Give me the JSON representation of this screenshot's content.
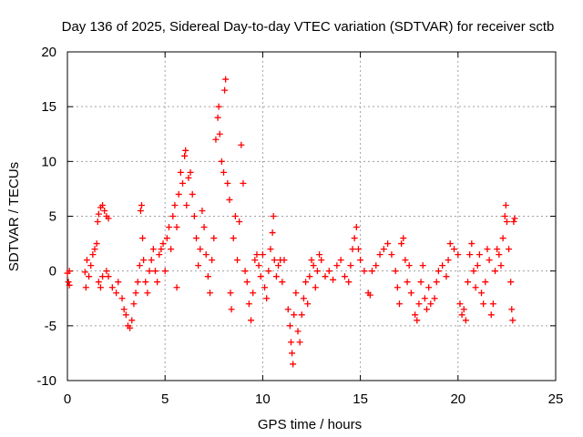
{
  "chart_data": {
    "type": "scatter",
    "title": "Day 136 of 2025, Sidereal Day-to-day VTEC variation (SDTVAR) for receiver sctb",
    "xlabel": "GPS time / hours",
    "ylabel": "SDTVAR / TECUs",
    "xlim": [
      0,
      25
    ],
    "ylim": [
      -10,
      20
    ],
    "xticks": [
      0,
      5,
      10,
      15,
      20,
      25
    ],
    "yticks": [
      -10,
      -5,
      0,
      5,
      10,
      15,
      20
    ],
    "xtick_labels": [
      "0",
      "5",
      "10",
      "15",
      "20",
      "25"
    ],
    "ytick_labels": [
      "-10",
      "-5",
      "0",
      "5",
      "10",
      "15",
      "20"
    ],
    "grid": true,
    "marker": "plus",
    "series": [
      {
        "name": "SDTVAR",
        "color": "#ff0000",
        "points": [
          [
            0.0,
            -0.2
          ],
          [
            0.05,
            -1.0
          ],
          [
            0.1,
            -1.3
          ],
          [
            0.1,
            0.0
          ],
          [
            0.9,
            -0.1
          ],
          [
            0.95,
            -1.5
          ],
          [
            1.0,
            1.0
          ],
          [
            1.1,
            -0.5
          ],
          [
            1.2,
            0.5
          ],
          [
            1.3,
            1.5
          ],
          [
            1.4,
            2.0
          ],
          [
            1.5,
            2.5
          ],
          [
            1.55,
            4.5
          ],
          [
            1.6,
            5.2
          ],
          [
            1.7,
            5.8
          ],
          [
            1.8,
            6.0
          ],
          [
            1.9,
            5.5
          ],
          [
            2.0,
            5.0
          ],
          [
            2.1,
            4.8
          ],
          [
            1.6,
            -1.0
          ],
          [
            1.7,
            -1.5
          ],
          [
            1.8,
            -0.5
          ],
          [
            2.0,
            0.0
          ],
          [
            2.1,
            -0.5
          ],
          [
            2.3,
            -1.5
          ],
          [
            2.5,
            -2.0
          ],
          [
            2.6,
            -1.0
          ],
          [
            2.8,
            -2.5
          ],
          [
            2.9,
            -3.5
          ],
          [
            3.0,
            -4.0
          ],
          [
            3.1,
            -5.0
          ],
          [
            3.2,
            -5.2
          ],
          [
            3.3,
            -4.5
          ],
          [
            3.4,
            -3.0
          ],
          [
            3.5,
            -2.0
          ],
          [
            3.6,
            -1.0
          ],
          [
            3.7,
            0.5
          ],
          [
            3.75,
            5.5
          ],
          [
            3.8,
            6.0
          ],
          [
            3.85,
            3.0
          ],
          [
            3.9,
            1.0
          ],
          [
            4.0,
            -1.0
          ],
          [
            4.1,
            -2.0
          ],
          [
            4.2,
            0.0
          ],
          [
            4.3,
            1.0
          ],
          [
            4.4,
            2.0
          ],
          [
            4.5,
            0.0
          ],
          [
            4.6,
            -1.0
          ],
          [
            4.7,
            1.5
          ],
          [
            4.8,
            2.0
          ],
          [
            4.9,
            2.5
          ],
          [
            5.0,
            0.0
          ],
          [
            5.1,
            3.0
          ],
          [
            5.2,
            4.0
          ],
          [
            5.3,
            2.0
          ],
          [
            5.4,
            5.0
          ],
          [
            5.5,
            6.0
          ],
          [
            5.6,
            4.0
          ],
          [
            5.6,
            -1.5
          ],
          [
            5.7,
            7.0
          ],
          [
            5.8,
            9.0
          ],
          [
            5.9,
            8.0
          ],
          [
            6.0,
            10.5
          ],
          [
            6.05,
            11.0
          ],
          [
            6.1,
            6.0
          ],
          [
            6.2,
            8.5
          ],
          [
            6.3,
            9.0
          ],
          [
            6.4,
            7.0
          ],
          [
            6.5,
            5.0
          ],
          [
            6.6,
            3.0
          ],
          [
            6.7,
            0.5
          ],
          [
            6.8,
            2.0
          ],
          [
            6.9,
            5.5
          ],
          [
            7.0,
            4.0
          ],
          [
            7.1,
            1.5
          ],
          [
            7.2,
            -0.5
          ],
          [
            7.3,
            -2.0
          ],
          [
            7.4,
            1.0
          ],
          [
            7.5,
            3.0
          ],
          [
            7.6,
            12.0
          ],
          [
            7.7,
            14.0
          ],
          [
            7.75,
            15.0
          ],
          [
            7.8,
            12.5
          ],
          [
            7.9,
            10.0
          ],
          [
            8.0,
            9.0
          ],
          [
            8.05,
            16.5
          ],
          [
            8.1,
            17.5
          ],
          [
            8.2,
            8.0
          ],
          [
            8.3,
            6.5
          ],
          [
            8.35,
            -2.0
          ],
          [
            8.4,
            -3.5
          ],
          [
            8.5,
            3.0
          ],
          [
            8.6,
            5.0
          ],
          [
            8.7,
            1.0
          ],
          [
            8.8,
            4.5
          ],
          [
            8.9,
            11.5
          ],
          [
            9.0,
            8.0
          ],
          [
            9.1,
            0.0
          ],
          [
            9.2,
            -1.0
          ],
          [
            9.3,
            -3.0
          ],
          [
            9.4,
            -4.5
          ],
          [
            9.5,
            -2.0
          ],
          [
            9.6,
            1.0
          ],
          [
            9.7,
            1.5
          ],
          [
            9.8,
            0.5
          ],
          [
            9.9,
            -0.5
          ],
          [
            10.0,
            1.5
          ],
          [
            10.1,
            -1.5
          ],
          [
            10.2,
            -2.5
          ],
          [
            10.3,
            0.0
          ],
          [
            10.4,
            2.0
          ],
          [
            10.5,
            3.5
          ],
          [
            10.55,
            5.0
          ],
          [
            10.6,
            1.0
          ],
          [
            10.7,
            -0.5
          ],
          [
            10.8,
            0.5
          ],
          [
            10.9,
            1.0
          ],
          [
            11.0,
            -1.0
          ],
          [
            11.1,
            1.0
          ],
          [
            11.3,
            -3.5
          ],
          [
            11.4,
            -5.0
          ],
          [
            11.45,
            -6.5
          ],
          [
            11.5,
            -7.5
          ],
          [
            11.55,
            -8.5
          ],
          [
            11.6,
            -4.0
          ],
          [
            11.7,
            -2.0
          ],
          [
            11.8,
            -5.5
          ],
          [
            11.9,
            -6.5
          ],
          [
            12.0,
            -4.0
          ],
          [
            12.1,
            -2.5
          ],
          [
            12.2,
            -1.0
          ],
          [
            12.3,
            -3.0
          ],
          [
            12.4,
            -0.5
          ],
          [
            12.5,
            1.0
          ],
          [
            12.6,
            0.5
          ],
          [
            12.7,
            -1.5
          ],
          [
            12.8,
            0.0
          ],
          [
            12.9,
            1.5
          ],
          [
            13.0,
            1.0
          ],
          [
            13.2,
            -0.5
          ],
          [
            13.4,
            0.0
          ],
          [
            13.6,
            -0.8
          ],
          [
            13.8,
            0.5
          ],
          [
            14.0,
            1.0
          ],
          [
            14.2,
            -0.5
          ],
          [
            14.4,
            -1.0
          ],
          [
            14.5,
            0.5
          ],
          [
            14.6,
            2.0
          ],
          [
            14.7,
            3.0
          ],
          [
            14.8,
            4.0
          ],
          [
            14.9,
            2.0
          ],
          [
            15.0,
            1.0
          ],
          [
            15.2,
            0.0
          ],
          [
            15.4,
            -2.0
          ],
          [
            15.5,
            -2.2
          ],
          [
            15.6,
            0.0
          ],
          [
            15.8,
            0.5
          ],
          [
            16.0,
            1.5
          ],
          [
            16.2,
            2.0
          ],
          [
            16.4,
            2.5
          ],
          [
            16.6,
            1.5
          ],
          [
            16.8,
            0.0
          ],
          [
            16.9,
            -1.5
          ],
          [
            17.0,
            -3.0
          ],
          [
            17.1,
            2.5
          ],
          [
            17.2,
            3.0
          ],
          [
            17.3,
            1.0
          ],
          [
            17.4,
            -1.0
          ],
          [
            17.5,
            0.5
          ],
          [
            17.6,
            -2.0
          ],
          [
            17.8,
            -4.0
          ],
          [
            17.9,
            -4.5
          ],
          [
            18.0,
            -3.0
          ],
          [
            18.1,
            -1.0
          ],
          [
            18.2,
            0.5
          ],
          [
            18.3,
            -2.5
          ],
          [
            18.4,
            -3.5
          ],
          [
            18.5,
            -1.5
          ],
          [
            18.6,
            -3.0
          ],
          [
            18.8,
            -2.5
          ],
          [
            18.9,
            -1.0
          ],
          [
            19.0,
            0.0
          ],
          [
            19.2,
            0.5
          ],
          [
            19.4,
            -0.5
          ],
          [
            19.5,
            1.0
          ],
          [
            19.6,
            2.5
          ],
          [
            19.8,
            2.0
          ],
          [
            20.0,
            1.5
          ],
          [
            20.1,
            -3.0
          ],
          [
            20.2,
            -4.0
          ],
          [
            20.3,
            -3.5
          ],
          [
            20.4,
            -4.5
          ],
          [
            20.5,
            -1.0
          ],
          [
            20.6,
            1.5
          ],
          [
            20.7,
            2.5
          ],
          [
            20.8,
            0.0
          ],
          [
            20.9,
            -1.5
          ],
          [
            21.0,
            0.5
          ],
          [
            21.1,
            1.5
          ],
          [
            21.2,
            -2.0
          ],
          [
            21.3,
            -3.0
          ],
          [
            21.4,
            -1.0
          ],
          [
            21.5,
            2.0
          ],
          [
            21.6,
            1.0
          ],
          [
            21.7,
            -4.0
          ],
          [
            21.8,
            -3.0
          ],
          [
            21.9,
            0.0
          ],
          [
            22.0,
            2.0
          ],
          [
            22.1,
            1.5
          ],
          [
            22.2,
            0.5
          ],
          [
            22.3,
            3.0
          ],
          [
            22.4,
            5.0
          ],
          [
            22.45,
            6.0
          ],
          [
            22.5,
            4.5
          ],
          [
            22.6,
            2.0
          ],
          [
            22.7,
            -1.0
          ],
          [
            22.75,
            -3.5
          ],
          [
            22.8,
            -4.5
          ],
          [
            22.85,
            4.5
          ],
          [
            22.9,
            4.8
          ]
        ]
      }
    ]
  }
}
